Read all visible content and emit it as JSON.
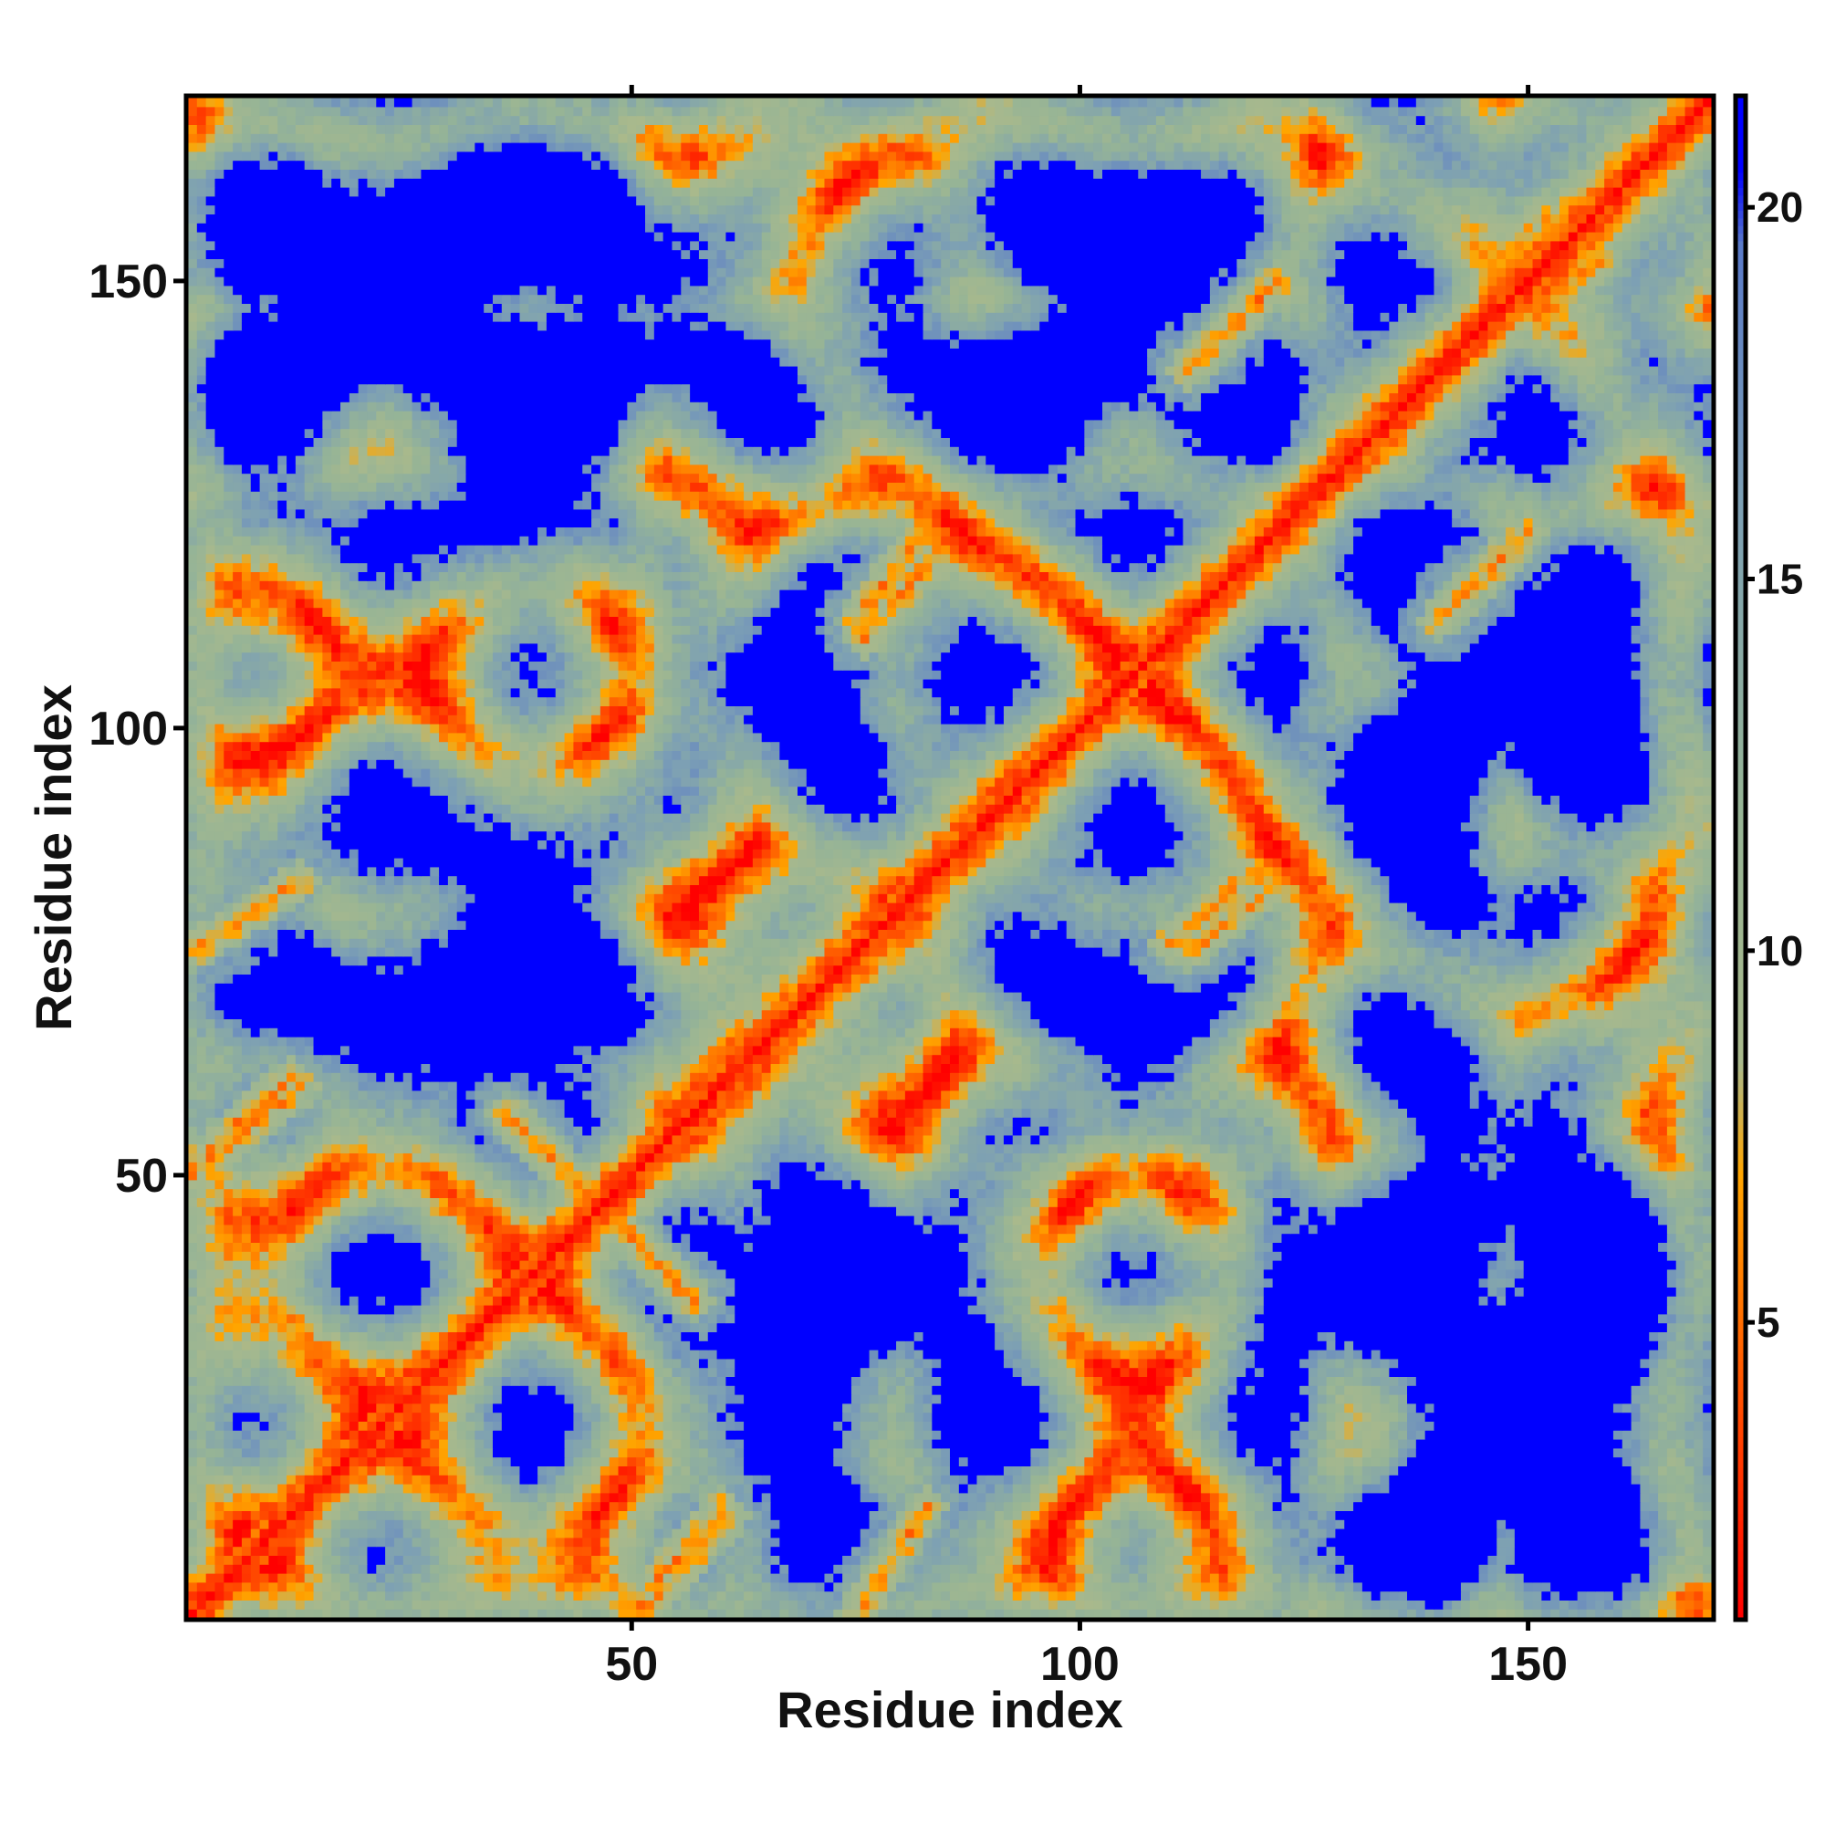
{
  "chart_data": {
    "type": "heatmap",
    "title": "",
    "xlabel": "Residue index",
    "ylabel": "Residue index",
    "n_residues": 170,
    "xlim": [
      1,
      170
    ],
    "ylim": [
      1,
      170
    ],
    "x_ticks": [
      50,
      100,
      150
    ],
    "y_ticks": [
      50,
      100,
      150
    ],
    "x_tick_labels": [
      "50",
      "100",
      "150"
    ],
    "y_tick_labels": [
      "50",
      "100",
      "150"
    ],
    "colorbar": {
      "range": [
        1,
        21.5
      ],
      "ticks": [
        5,
        10,
        15,
        20
      ],
      "tick_labels": [
        "5",
        "10",
        "15",
        "20"
      ],
      "stops": [
        {
          "value": 1,
          "color": "#ff0000"
        },
        {
          "value": 4,
          "color": "#ff5000"
        },
        {
          "value": 7,
          "color": "#ffa500"
        },
        {
          "value": 8.5,
          "color": "#a9b98c"
        },
        {
          "value": 12,
          "color": "#96b496"
        },
        {
          "value": 16,
          "color": "#7da0b4"
        },
        {
          "value": 19.5,
          "color": "#5a7ac8"
        },
        {
          "value": 20.5,
          "color": "#0000ff"
        }
      ]
    },
    "grid": false,
    "description_values": {
      "diagonal_distance": 3.8,
      "background_distance": 21,
      "contact_segments": [
        {
          "x": [
            36,
            57
          ],
          "y": [
            57,
            36
          ]
        },
        {
          "x": [
            1,
            12
          ],
          "y": [
            51,
            61
          ]
        },
        {
          "x": [
            50,
            60
          ],
          "y": [
            1,
            13
          ]
        },
        {
          "x": [
            75,
            83
          ],
          "y": [
            1,
            13
          ]
        },
        {
          "x": [
            75,
            85
          ],
          "y": [
            112,
            125
          ]
        },
        {
          "x": [
            103,
            110
          ],
          "y": [
            100,
            108
          ]
        },
        {
          "x": [
            110,
            122
          ],
          "y": [
            76,
            86
          ]
        },
        {
          "x": [
            140,
            148
          ],
          "y": [
            112,
            120
          ]
        },
        {
          "x": [
            146,
            152
          ],
          "y": [
            148,
            158
          ]
        },
        {
          "x": [
            112,
            122
          ],
          "y": [
            140,
            150
          ]
        }
      ]
    }
  }
}
